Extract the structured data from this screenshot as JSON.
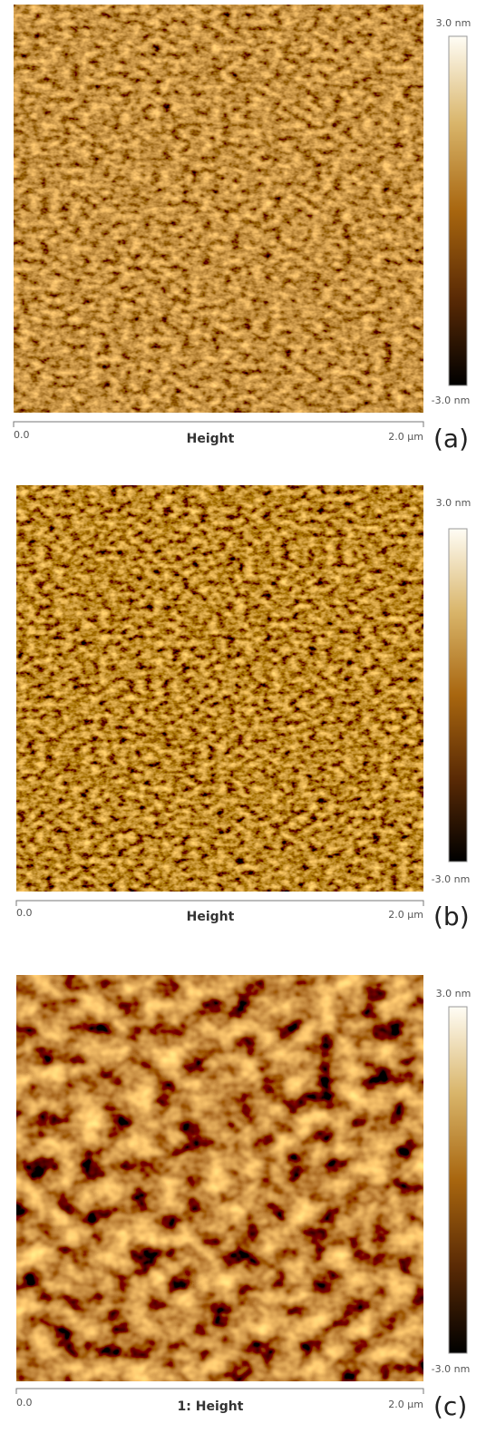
{
  "panels": [
    {
      "scale_max": "3.0 nm",
      "scale_min": "-3.0 nm",
      "axis_start": "0.0",
      "axis_end": "2.0 µm",
      "title": "Height",
      "tag": "(a)"
    },
    {
      "scale_max": "3.0 nm",
      "scale_min": "-3.0 nm",
      "axis_start": "0.0",
      "axis_end": "2.0 µm",
      "title": "Height",
      "tag": "(b)"
    },
    {
      "scale_max": "3.0 nm",
      "scale_min": "-3.0 nm",
      "axis_start": "0.0",
      "axis_end": "2.0 µm",
      "title": "1: Height",
      "tag": "(c)"
    }
  ]
}
